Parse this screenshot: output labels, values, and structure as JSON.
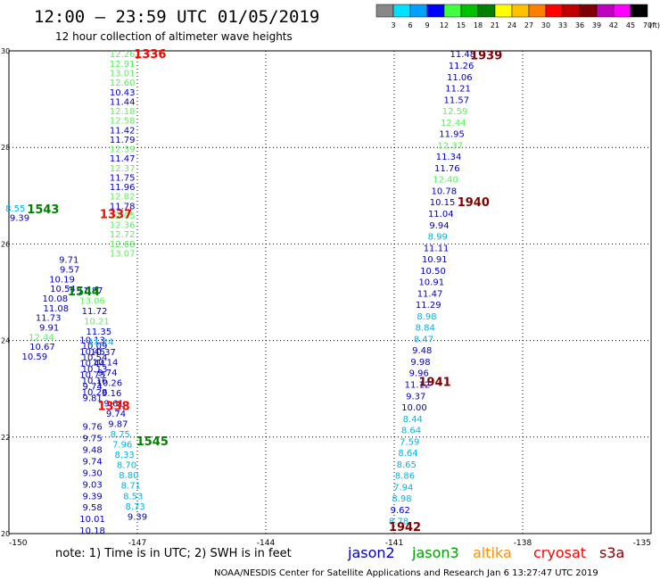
{
  "header": {
    "title": "12:00 – 23:59 UTC 01/05/2019",
    "subtitle": "12 hour collection of altimeter wave heights"
  },
  "legend": {
    "labels": [
      "3",
      "6",
      "9",
      "12",
      "15",
      "18",
      "21",
      "24",
      "27",
      "30",
      "33",
      "36",
      "39",
      "42",
      "45",
      "70",
      "(ft)"
    ],
    "colors": [
      "#888888",
      "#00e0ff",
      "#00a0ff",
      "#0000ff",
      "#40ff40",
      "#00c000",
      "#008000",
      "#ffff00",
      "#ffc000",
      "#ff8000",
      "#ff0000",
      "#c00000",
      "#800000",
      "#c000c0",
      "#ff00ff",
      "#000000"
    ]
  },
  "footer": {
    "note": "note:  1) Time is in UTC;  2) SWH is in feet",
    "satellites": [
      {
        "name": "jason2",
        "color": "#0000c8"
      },
      {
        "name": "jason3",
        "color": "#00a000"
      },
      {
        "name": "altika",
        "color": "#ff9000"
      },
      {
        "name": "cryosat",
        "color": "#ff0000"
      },
      {
        "name": "s3a",
        "color": "#800000"
      }
    ],
    "credit": "NOAA/NESDIS Center for Satellite Applications and Research   Jan  6 13:27:47 UTC 2019"
  },
  "chart_data": {
    "type": "scatter",
    "xlim": [
      -150,
      -135
    ],
    "ylim": [
      20,
      30
    ],
    "xticks": [
      "-150",
      "-147",
      "-144",
      "-141",
      "-138",
      "-135"
    ],
    "yticks": [
      "20",
      "22",
      "24",
      "26",
      "28",
      "30"
    ],
    "colors": {
      "lightblue": "#00b4e6",
      "lightgreen": "#5cf05c",
      "darkblue": "#0000c0",
      "red": "#ff0000",
      "darkred": "#800000",
      "green": "#008000"
    },
    "series": [
      {
        "name": "jason3",
        "color": "lightgreen",
        "x": -147.35,
        "y0": 29.94,
        "dy": -0.1965,
        "values": [
          "12.26",
          "12.91",
          "13.01",
          "12.60",
          "10.43",
          "11.44",
          "12.18",
          "12.58",
          "11.42",
          "11.79",
          "12.39",
          "11.47",
          "12.37",
          "11.75",
          "11.96",
          "12.82",
          "11.78",
          "12.05",
          "12.36",
          "12.72",
          "12.68",
          "13.07"
        ],
        "colorIdx": [
          0,
          0,
          0,
          0,
          2,
          2,
          0,
          0,
          2,
          2,
          0,
          2,
          0,
          2,
          2,
          0,
          2,
          0,
          0,
          0,
          0,
          0
        ]
      },
      {
        "name": "cryosat",
        "color": "darkblue",
        "x": -148.6,
        "y0": 25.68,
        "dy": -0.2,
        "values": [
          "9.71",
          "9.57",
          "10.19",
          "10.54",
          "10.08",
          "11.08",
          "11.73",
          "9.91",
          "12.44",
          "10.67",
          "10.59"
        ],
        "colorIdx": [
          2,
          2,
          2,
          2,
          2,
          2,
          2,
          2,
          0,
          2,
          2
        ],
        "dx": 0.1
      },
      {
        "name": "jason2",
        "color": "darkblue",
        "x": -148.05,
        "y0": 24.02,
        "dy": -0.12,
        "values": [
          "10.13",
          "10.09",
          "10.45",
          "10.54",
          "10.44",
          "10.13",
          "10.73",
          "10.16",
          "9.74",
          "10.28",
          "9.81"
        ],
        "colorIdx": [
          2,
          2,
          2,
          2,
          2,
          2,
          2,
          2,
          2,
          2,
          2
        ],
        "dx": 0.05
      },
      {
        "name": "tail",
        "color": "darkblue",
        "x": -148.05,
        "y0": 22.23,
        "dy": -0.24,
        "values": [
          "9.76",
          "9.75",
          "9.48",
          "9.74",
          "9.30",
          "9.03",
          "9.39",
          "9.58",
          "10.01",
          "10.18"
        ],
        "colorIdx": [
          2,
          2,
          2,
          2,
          2,
          2,
          2,
          2,
          2,
          2
        ],
        "dx": 0
      }
    ],
    "east_pass": {
      "values": [
        "11.48",
        "11.26",
        "11.06",
        "11.21",
        "11.57",
        "12.59",
        "12.44",
        "11.95",
        "12.37",
        "11.34",
        "11.76",
        "12.40",
        "10.78",
        "10.15",
        "11.04",
        "9.94",
        "8.99",
        "11.11",
        "10.91",
        "10.50",
        "10.91",
        "11.47",
        "11.29",
        "8.98",
        "8.84",
        "8.47",
        "9.48",
        "9.98",
        "9.96",
        "11.12",
        "9.37",
        "10.00",
        "8.44",
        "8.64",
        "7.59",
        "8.64",
        "8.65",
        "8.86",
        "7.94",
        "8.98",
        "9.62",
        "8.78"
      ],
      "colorIdx": [
        2,
        2,
        2,
        2,
        2,
        0,
        0,
        2,
        0,
        2,
        2,
        0,
        2,
        2,
        2,
        2,
        1,
        2,
        2,
        2,
        2,
        2,
        2,
        1,
        1,
        1,
        2,
        2,
        2,
        2,
        2,
        2,
        1,
        1,
        1,
        1,
        1,
        1,
        1,
        1,
        2,
        1
      ]
    },
    "mid_pass": {
      "values": [
        "11.87",
        "13.06",
        "11.72",
        "10.21",
        "11.35",
        "11.24",
        "10.37",
        "10.14",
        "9.74",
        "10.26",
        "9.16",
        "9.61",
        "9.74",
        "9.87",
        "8.75",
        "7.96",
        "8.33",
        "8.70",
        "8.80",
        "8.71",
        "8.53",
        "8.73",
        "9.39"
      ],
      "colorIdx": [
        2,
        0,
        2,
        0,
        2,
        1,
        2,
        2,
        2,
        2,
        2,
        2,
        2,
        2,
        1,
        1,
        1,
        1,
        1,
        1,
        1,
        1,
        2
      ]
    },
    "pass_labels": [
      {
        "text": "1336",
        "color": "red",
        "x": -146.7,
        "y": 29.94
      },
      {
        "text": "1939",
        "color": "darkred",
        "x": -138.85,
        "y": 29.92
      },
      {
        "text": "1543",
        "color": "green",
        "x": -149.2,
        "y": 26.73
      },
      {
        "text": "1337",
        "color": "red",
        "x": -147.5,
        "y": 26.63
      },
      {
        "text": "1940",
        "color": "darkred",
        "x": -139.15,
        "y": 26.88
      },
      {
        "text": "1544",
        "color": "green",
        "x": -148.25,
        "y": 25.03
      },
      {
        "text": "1941",
        "color": "darkred",
        "x": -140.05,
        "y": 23.15
      },
      {
        "text": "1338",
        "color": "red",
        "x": -147.55,
        "y": 22.65
      },
      {
        "text": "1545",
        "color": "green",
        "x": -146.65,
        "y": 21.92
      },
      {
        "text": "1942",
        "color": "darkred",
        "x": -140.75,
        "y": 20.15
      }
    ],
    "misc_points": [
      {
        "v": "8.55",
        "color": "lightblue",
        "x": -149.85,
        "y": 26.75
      },
      {
        "v": "9.39",
        "color": "darkblue",
        "x": -149.75,
        "y": 26.55
      }
    ]
  }
}
